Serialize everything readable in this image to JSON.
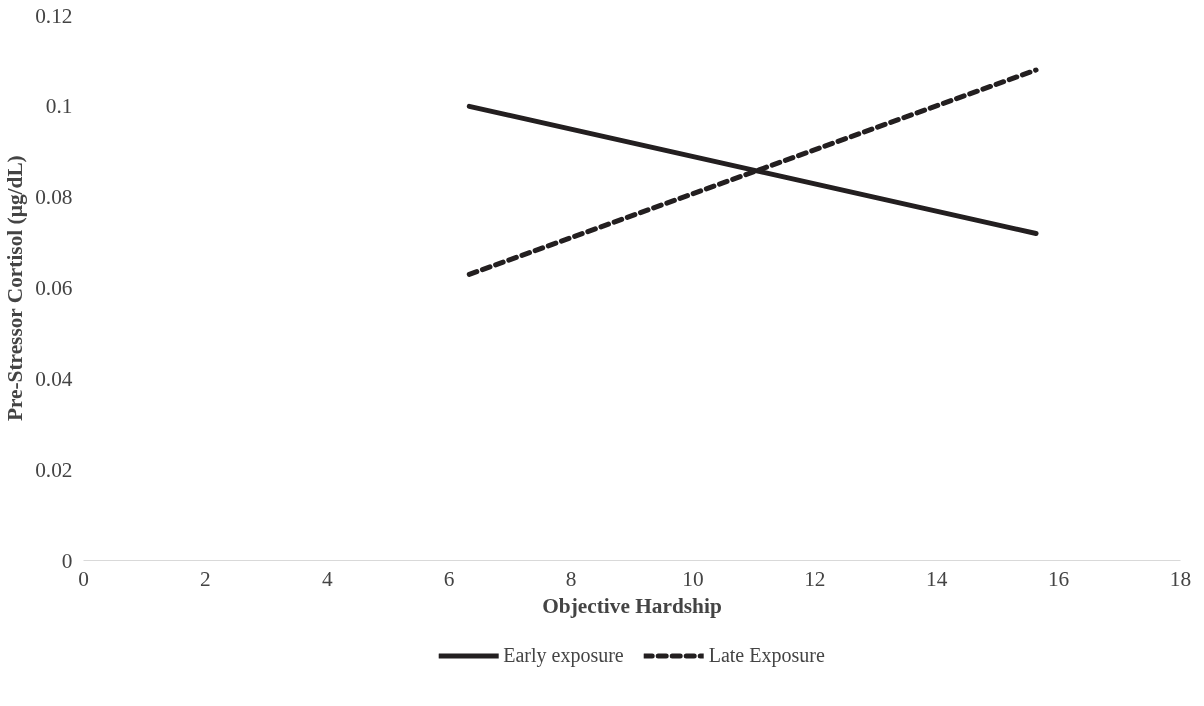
{
  "chart_data": {
    "type": "line",
    "xlabel": "Objective Hardship",
    "ylabel": "Pre-Stressor Cortisol (µg/dL)",
    "x": [
      6.33,
      15.63
    ],
    "series": [
      {
        "name": "Early exposure",
        "color": "#231f20",
        "values": [
          0.1,
          0.072
        ],
        "line_style": "solid"
      },
      {
        "name": "Late Exposure",
        "color": "#231f20",
        "values": [
          0.063,
          0.108
        ],
        "line_style": "dashed"
      }
    ],
    "xlim": [
      0,
      18
    ],
    "xticks": [
      0,
      2,
      4,
      6,
      8,
      10,
      12,
      14,
      16,
      18
    ],
    "ylim": [
      0,
      0.12
    ],
    "yticks": [
      0,
      0.02,
      0.04,
      0.06,
      0.08,
      0.1,
      0.12
    ],
    "grid": false,
    "legend": "bottom",
    "marker": "none"
  }
}
